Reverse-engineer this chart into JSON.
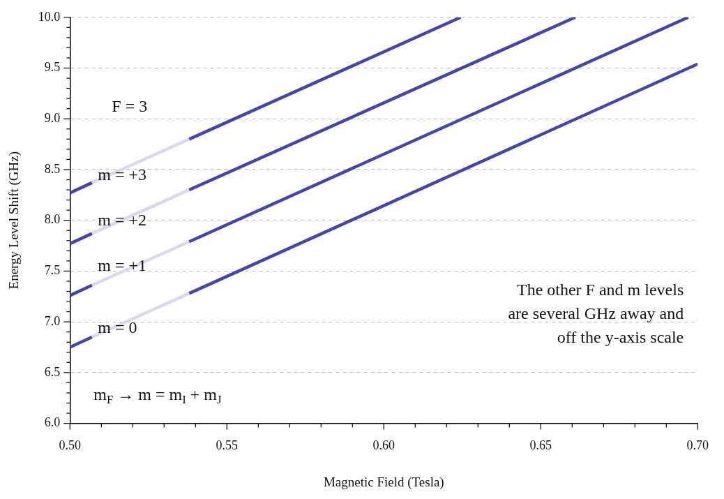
{
  "chart_data": {
    "type": "line",
    "xlabel": "Magnetic Field (Tesla)",
    "ylabel": "Energy Level Shift (GHz)",
    "xlim": [
      0.5,
      0.7
    ],
    "xticks": [
      {
        "value": 0.5,
        "label": "0.50"
      },
      {
        "value": 0.51,
        "label": null
      },
      {
        "value": 0.52,
        "label": null
      },
      {
        "value": 0.53,
        "label": null
      },
      {
        "value": 0.54,
        "label": null
      },
      {
        "value": 0.55,
        "label": "0.55"
      },
      {
        "value": 0.56,
        "label": null
      },
      {
        "value": 0.57,
        "label": null
      },
      {
        "value": 0.58,
        "label": null
      },
      {
        "value": 0.59,
        "label": null
      },
      {
        "value": 0.6,
        "label": "0.60"
      },
      {
        "value": 0.61,
        "label": null
      },
      {
        "value": 0.62,
        "label": null
      },
      {
        "value": 0.63,
        "label": null
      },
      {
        "value": 0.64,
        "label": null
      },
      {
        "value": 0.65,
        "label": "0.65"
      },
      {
        "value": 0.66,
        "label": null
      },
      {
        "value": 0.67,
        "label": null
      },
      {
        "value": 0.68,
        "label": null
      },
      {
        "value": 0.69,
        "label": null
      },
      {
        "value": 0.7,
        "label": "0.70"
      }
    ],
    "ylim": [
      6.0,
      10.0
    ],
    "yticks": [
      {
        "value": 6.0,
        "label": "6.0"
      },
      {
        "value": 6.1,
        "label": null
      },
      {
        "value": 6.2,
        "label": null
      },
      {
        "value": 6.3,
        "label": null
      },
      {
        "value": 6.4,
        "label": null
      },
      {
        "value": 6.5,
        "label": "6.5"
      },
      {
        "value": 6.6,
        "label": null
      },
      {
        "value": 6.7,
        "label": null
      },
      {
        "value": 6.8,
        "label": null
      },
      {
        "value": 6.9,
        "label": null
      },
      {
        "value": 7.0,
        "label": "7.0"
      },
      {
        "value": 7.1,
        "label": null
      },
      {
        "value": 7.2,
        "label": null
      },
      {
        "value": 7.3,
        "label": null
      },
      {
        "value": 7.4,
        "label": null
      },
      {
        "value": 7.5,
        "label": "7.5"
      },
      {
        "value": 7.6,
        "label": null
      },
      {
        "value": 7.7,
        "label": null
      },
      {
        "value": 7.8,
        "label": null
      },
      {
        "value": 7.9,
        "label": null
      },
      {
        "value": 8.0,
        "label": "8.0"
      },
      {
        "value": 8.1,
        "label": null
      },
      {
        "value": 8.2,
        "label": null
      },
      {
        "value": 8.3,
        "label": null
      },
      {
        "value": 8.4,
        "label": null
      },
      {
        "value": 8.5,
        "label": "8.5"
      },
      {
        "value": 8.6,
        "label": null
      },
      {
        "value": 8.7,
        "label": null
      },
      {
        "value": 8.8,
        "label": null
      },
      {
        "value": 8.9,
        "label": null
      },
      {
        "value": 9.0,
        "label": "9.0"
      },
      {
        "value": 9.1,
        "label": null
      },
      {
        "value": 9.2,
        "label": null
      },
      {
        "value": 9.3,
        "label": null
      },
      {
        "value": 9.4,
        "label": null
      },
      {
        "value": 9.5,
        "label": "9.5"
      },
      {
        "value": 9.6,
        "label": null
      },
      {
        "value": 9.7,
        "label": null
      },
      {
        "value": 9.8,
        "label": null
      },
      {
        "value": 9.9,
        "label": null
      },
      {
        "value": 10.0,
        "label": "10.0"
      }
    ],
    "grid": "y",
    "legend": false,
    "marker": "none",
    "line_style": "solid",
    "series": [
      {
        "color": "#4347ab",
        "x": [
          0.5,
          0.507,
          0.52,
          0.538,
          0.6245
        ],
        "values": [
          8.27,
          8.37,
          null,
          8.8,
          10.0
        ]
      },
      {
        "color": "#d8d9ef",
        "x": [
          0.507,
          0.538
        ],
        "values": [
          8.37,
          8.8
        ]
      },
      {
        "color": "#4347ab",
        "x": [
          0.5,
          0.507,
          0.52,
          0.538,
          0.661
        ],
        "values": [
          7.77,
          7.87,
          null,
          8.3,
          10.0
        ]
      },
      {
        "color": "#d8d9ef",
        "x": [
          0.507,
          0.538
        ],
        "values": [
          7.87,
          8.3
        ]
      },
      {
        "color": "#4347ab",
        "x": [
          0.5,
          0.507,
          0.52,
          0.538,
          0.697
        ],
        "values": [
          7.26,
          7.36,
          null,
          7.79,
          10.0
        ]
      },
      {
        "color": "#d8d9ef",
        "x": [
          0.507,
          0.538
        ],
        "values": [
          7.36,
          7.79
        ]
      },
      {
        "color": "#4347ab",
        "x": [
          0.5,
          0.507,
          0.52,
          0.538,
          0.7
        ],
        "values": [
          6.75,
          6.85,
          null,
          7.28,
          9.54
        ]
      },
      {
        "color": "#d8d9ef",
        "x": [
          0.507,
          0.538
        ],
        "values": [
          6.85,
          7.28
        ]
      }
    ],
    "annotations": [
      "F = 3",
      "m = +3",
      "m = +2",
      "m = +1",
      "m = 0",
      "m$_{F}$ → m = m$_{I}$ + m$_{J}$",
      "The other F and m levels\nare several GHz away and\noff the y-axis scale"
    ]
  }
}
